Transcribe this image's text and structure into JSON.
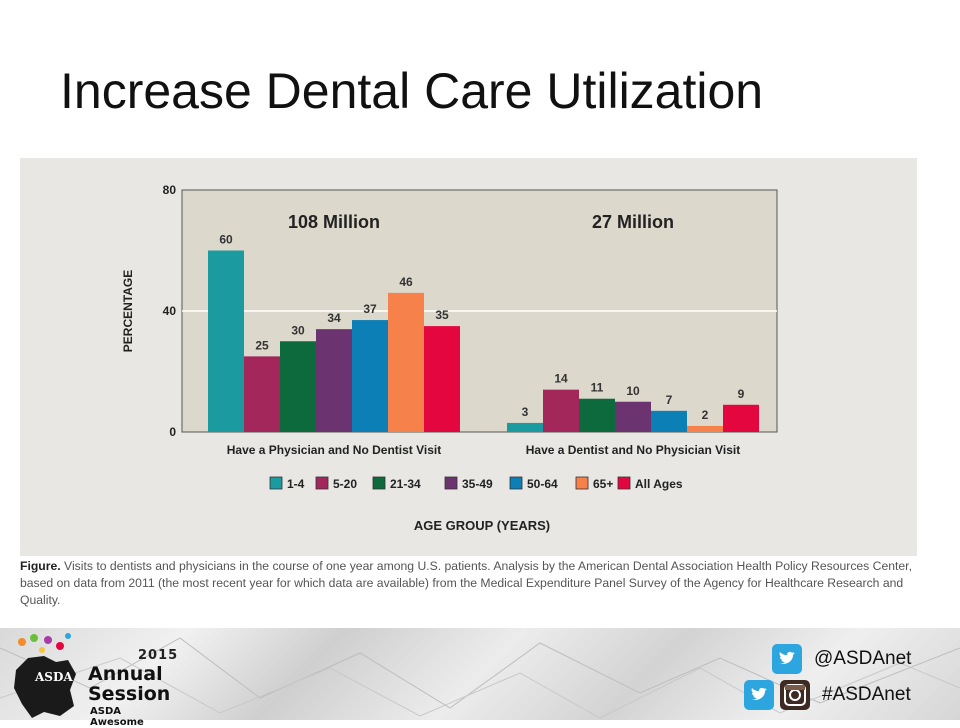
{
  "slide": {
    "title": "Increase Dental Care Utilization"
  },
  "chart_data": {
    "type": "bar",
    "ylabel": "PERCENTAGE",
    "xlabel": "AGE GROUP (YEARS)",
    "ylim": [
      0,
      80
    ],
    "yticks": [
      0,
      40,
      80
    ],
    "grid": true,
    "legend_position": "bottom",
    "groups": [
      {
        "label": "Have a Physician and No Dentist Visit",
        "total": "108 Million"
      },
      {
        "label": "Have a Dentist and No Physician Visit",
        "total": "27 Million"
      }
    ],
    "series": [
      {
        "name": "1-4",
        "color": "#1b9aa0",
        "values": [
          60,
          3
        ]
      },
      {
        "name": "5-20",
        "color": "#a3275b",
        "values": [
          25,
          14
        ]
      },
      {
        "name": "21-34",
        "color": "#0d6a3c",
        "values": [
          30,
          11
        ]
      },
      {
        "name": "35-49",
        "color": "#6b3470",
        "values": [
          34,
          10
        ]
      },
      {
        "name": "50-64",
        "color": "#0b7fb6",
        "values": [
          37,
          7
        ]
      },
      {
        "name": "65+",
        "color": "#f6814b",
        "values": [
          46,
          2
        ]
      },
      {
        "name": "All Ages",
        "color": "#e4063e",
        "values": [
          35,
          9
        ]
      }
    ]
  },
  "caption": {
    "label": "Figure.",
    "text": "Visits to dentists and physicians in the course of one year among U.S. patients. Analysis by the American Dental Association Health Policy Resources Center, based on data from 2011 (the most recent year for which data are available) from the Medical Expenditure Panel Survey of the Agency for Healthcare Research and Quality."
  },
  "footer": {
    "logo": {
      "year": "2015",
      "line1": "Annual",
      "line2": "Session",
      "tagline": "ASDA Awesome",
      "mark": "ASDA"
    },
    "social": [
      {
        "text": "@ASDAnet",
        "icons": [
          "twitter-icon"
        ]
      },
      {
        "text": "#ASDAnet",
        "icons": [
          "twitter-icon",
          "instagram-icon"
        ]
      }
    ]
  }
}
